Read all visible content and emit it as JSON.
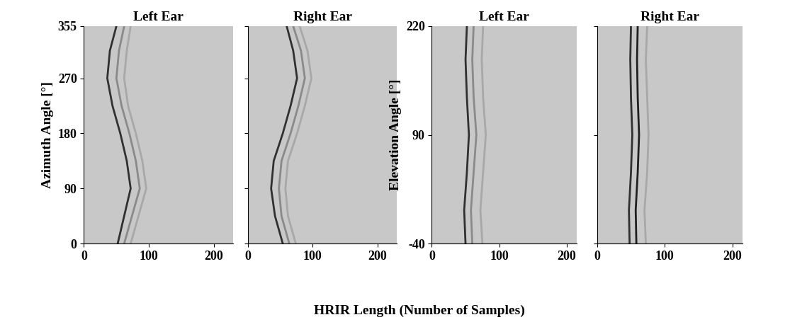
{
  "xlabel": "HRIR Length (Number of Samples)",
  "chart_data": [
    {
      "type": "line",
      "orientation": "horizontal",
      "title": "Left Ear",
      "ylabel": "Azimuth Angle [°]",
      "xlim": [
        0,
        230
      ],
      "xticks": [
        0,
        100,
        200
      ],
      "ylim": [
        0,
        355
      ],
      "yticks": [
        0,
        90,
        180,
        270,
        355
      ],
      "tick_labels": true,
      "y": [
        0,
        45,
        90,
        135,
        180,
        225,
        270,
        315,
        355
      ],
      "series": [
        {
          "color": "#303030",
          "values": [
            52,
            62,
            72,
            66,
            56,
            44,
            36,
            40,
            50
          ]
        },
        {
          "color": "#8a8a8a",
          "values": [
            62,
            74,
            86,
            80,
            70,
            58,
            50,
            54,
            62
          ]
        },
        {
          "color": "#a8a8a8",
          "values": [
            72,
            84,
            96,
            90,
            80,
            68,
            62,
            66,
            72
          ]
        }
      ]
    },
    {
      "type": "line",
      "orientation": "horizontal",
      "title": "Right Ear",
      "xlim": [
        0,
        230
      ],
      "xticks": [
        0,
        100,
        200
      ],
      "ylim": [
        0,
        355
      ],
      "yticks": [
        0,
        90,
        180,
        270,
        355
      ],
      "tick_labels": "x",
      "y": [
        0,
        45,
        90,
        135,
        180,
        225,
        270,
        315,
        355
      ],
      "series": [
        {
          "color": "#303030",
          "values": [
            54,
            42,
            36,
            40,
            54,
            66,
            76,
            70,
            60
          ]
        },
        {
          "color": "#8a8a8a",
          "values": [
            64,
            52,
            48,
            52,
            66,
            78,
            88,
            82,
            70
          ]
        },
        {
          "color": "#a8a8a8",
          "values": [
            74,
            62,
            58,
            62,
            76,
            88,
            98,
            92,
            80
          ]
        }
      ]
    },
    {
      "type": "line",
      "orientation": "horizontal",
      "title": "Left Ear",
      "ylabel": "Elevation Angle [°]",
      "xlim": [
        0,
        215
      ],
      "xticks": [
        0,
        100,
        200
      ],
      "ylim": [
        -40,
        220
      ],
      "yticks": [
        -40,
        90,
        220
      ],
      "tick_labels": true,
      "y": [
        -40,
        0,
        45,
        90,
        135,
        180,
        220
      ],
      "series": [
        {
          "color": "#303030",
          "values": [
            50,
            48,
            52,
            55,
            52,
            50,
            52
          ]
        },
        {
          "color": "#8a8a8a",
          "values": [
            60,
            58,
            62,
            66,
            62,
            60,
            62
          ]
        },
        {
          "color": "#a8a8a8",
          "values": [
            75,
            72,
            76,
            80,
            76,
            74,
            76
          ]
        }
      ]
    },
    {
      "type": "line",
      "orientation": "horizontal",
      "title": "Right Ear",
      "xlim": [
        0,
        215
      ],
      "xticks": [
        0,
        100,
        200
      ],
      "ylim": [
        -40,
        220
      ],
      "yticks": [
        -40,
        90,
        220
      ],
      "tick_labels": "x",
      "y": [
        -40,
        0,
        45,
        90,
        135,
        180,
        220
      ],
      "series": [
        {
          "color": "#303030",
          "values": [
            48,
            47,
            50,
            52,
            50,
            49,
            50
          ]
        },
        {
          "color": "#202020",
          "values": [
            58,
            57,
            60,
            62,
            60,
            59,
            60
          ]
        },
        {
          "color": "#a8a8a8",
          "values": [
            72,
            70,
            74,
            76,
            74,
            72,
            74
          ]
        }
      ]
    }
  ]
}
